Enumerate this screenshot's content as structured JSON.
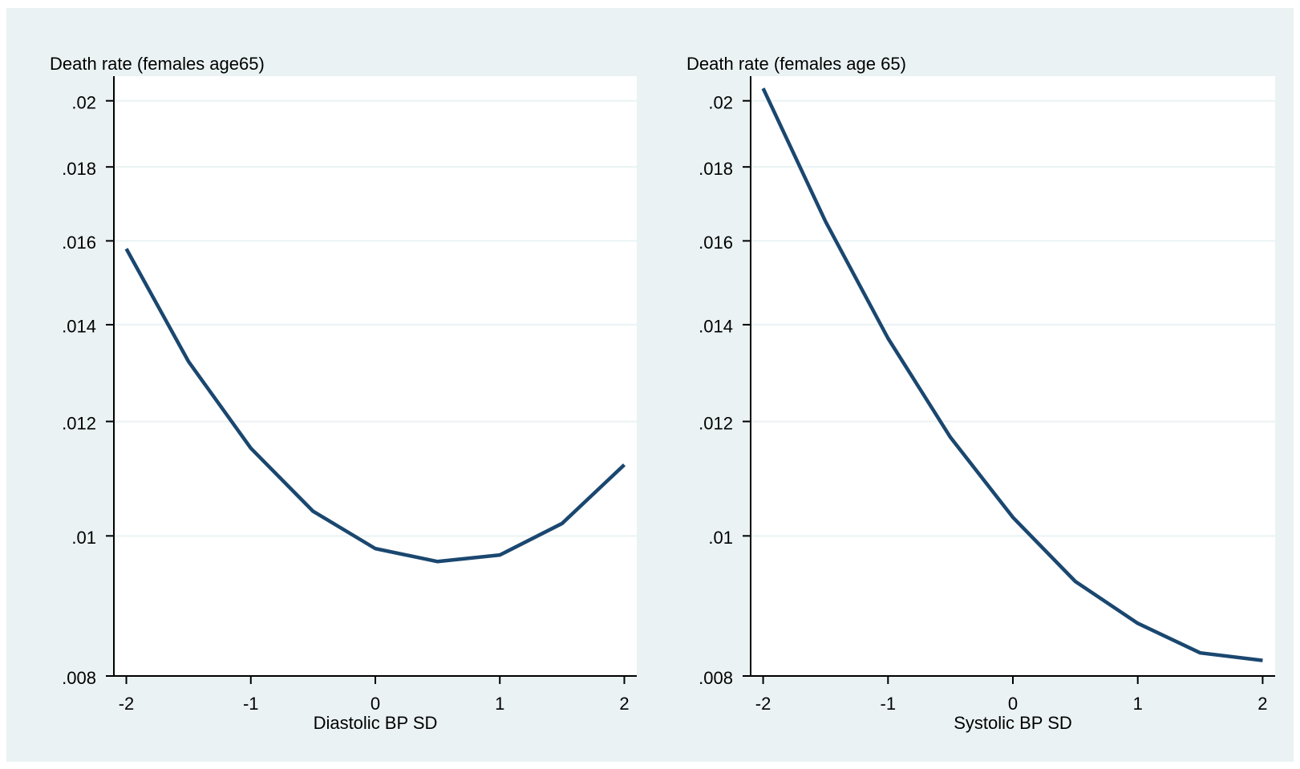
{
  "chart_data": [
    {
      "type": "line",
      "title": "Death rate (females age65)",
      "xlabel": "Diastolic BP SD",
      "x": [
        -2,
        -1.5,
        -1,
        -0.5,
        0,
        0.5,
        1,
        1.5,
        2
      ],
      "series": [
        {
          "color": "#1a476f",
          "values": [
            0.0158,
            0.0132,
            0.0115,
            0.0104,
            0.0098,
            0.0096,
            0.0097,
            0.0102,
            0.0112
          ]
        }
      ],
      "xlim": [
        -2.1,
        2.1
      ],
      "xticks": [
        -2,
        -1,
        0,
        1,
        2
      ],
      "ylim": [
        0.008,
        0.0208
      ],
      "log_y": true,
      "grid": true,
      "yticks": [
        {
          "value": 0.008,
          "label": ".008"
        },
        {
          "value": 0.01,
          "label": ".01"
        },
        {
          "value": 0.012,
          "label": ".012"
        },
        {
          "value": 0.014,
          "label": ".014"
        },
        {
          "value": 0.016,
          "label": ".016"
        },
        {
          "value": 0.018,
          "label": ".018"
        },
        {
          "value": 0.02,
          "label": ".02"
        }
      ]
    },
    {
      "type": "line",
      "title": "Death rate (females age 65)",
      "xlabel": "Systolic BP SD",
      "x": [
        -2,
        -1.5,
        -1,
        -0.5,
        0,
        0.5,
        1,
        1.5,
        2
      ],
      "series": [
        {
          "color": "#1a476f",
          "values": [
            0.0204,
            0.0165,
            0.0137,
            0.0117,
            0.0103,
            0.0093,
            0.0087,
            0.0083,
            0.0082
          ]
        }
      ],
      "xlim": [
        -2.1,
        2.1
      ],
      "xticks": [
        -2,
        -1,
        0,
        1,
        2
      ],
      "ylim": [
        0.008,
        0.0208
      ],
      "log_y": true,
      "grid": true,
      "yticks": [
        {
          "value": 0.008,
          "label": ".008"
        },
        {
          "value": 0.01,
          "label": ".01"
        },
        {
          "value": 0.012,
          "label": ".012"
        },
        {
          "value": 0.014,
          "label": ".014"
        },
        {
          "value": 0.016,
          "label": ".016"
        },
        {
          "value": 0.018,
          "label": ".018"
        },
        {
          "value": 0.02,
          "label": ".02"
        }
      ]
    }
  ]
}
